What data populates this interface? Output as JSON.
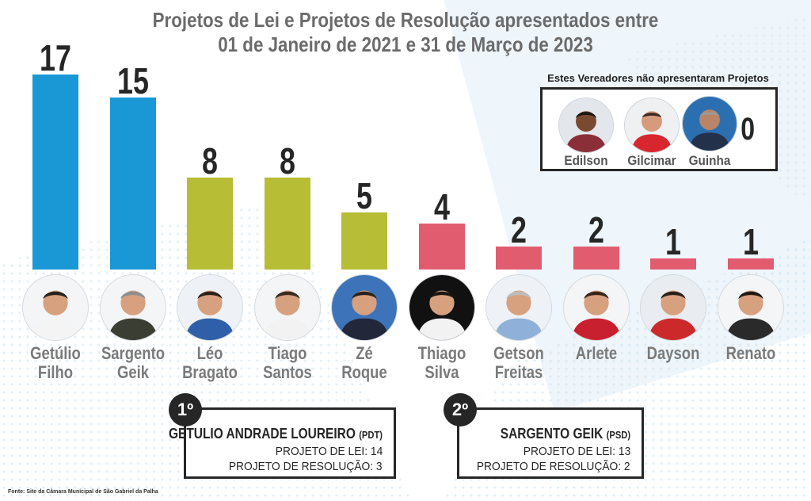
{
  "chart_data": {
    "type": "bar",
    "title": [
      "Projetos de Lei e Projetos de Resolução apresentados entre",
      "01 de Janeiro de 2021 e 31 de Março de 2023"
    ],
    "categories": [
      {
        "first": "Getúlio",
        "last": "Filho"
      },
      {
        "first": "Sargento",
        "last": "Geik"
      },
      {
        "first": "Léo",
        "last": "Bragato"
      },
      {
        "first": "Tiago",
        "last": "Santos"
      },
      {
        "first": "Zé",
        "last": "Roque"
      },
      {
        "first": "Thiago",
        "last": "Silva"
      },
      {
        "first": "Getson",
        "last": "Freitas"
      },
      {
        "first": "Arlete",
        "last": ""
      },
      {
        "first": "Dayson",
        "last": ""
      },
      {
        "first": "Renato",
        "last": ""
      }
    ],
    "values": [
      17,
      15,
      8,
      8,
      5,
      4,
      2,
      2,
      1,
      1
    ],
    "bar_colors": [
      "#1a98d6",
      "#1a98d6",
      "#b7bd35",
      "#b7bd35",
      "#b7bd35",
      "#e25c70",
      "#e25c70",
      "#e25c70",
      "#e25c70",
      "#e25c70"
    ],
    "ylim": [
      0,
      17
    ],
    "grid": false,
    "legend": "none",
    "zero_projects": {
      "title": "Estes Vereadores não apresentaram Projetos",
      "names": [
        "Edilson",
        "Gilcimar",
        "Guinha"
      ],
      "value": "0"
    }
  },
  "highlights": [
    {
      "rank": "1º",
      "name": "GETULIO ANDRADE LOUREIRO",
      "party": "(PDT)",
      "line1": "PROJETO DE LEI: 14",
      "line2": "PROJETO DE RESOLUÇÃO: 3"
    },
    {
      "rank": "2º",
      "name": "SARGENTO GEIK",
      "party": "(PSD)",
      "line1": "PROJETO DE LEI: 13",
      "line2": "PROJETO DE RESOLUÇÃO: 2"
    }
  ],
  "source": "Fonte: Site da Câmara Municipal de São Gabriel da Palha",
  "colors": {
    "skin": "#d7a07f",
    "hair": "#2f2520",
    "shirt": "#ffffff"
  }
}
